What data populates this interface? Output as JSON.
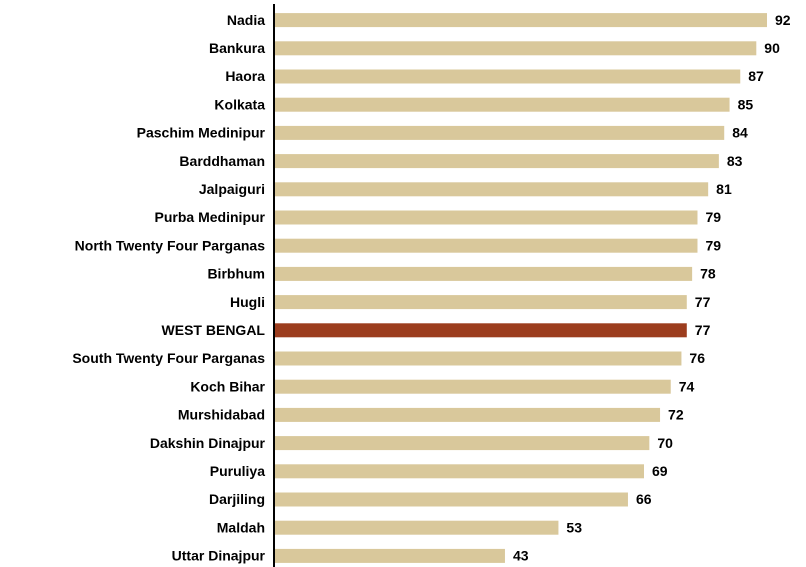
{
  "chart_data": {
    "type": "hbar",
    "categories": [
      "Nadia",
      "Bankura",
      "Haora",
      "Kolkata",
      "Paschim Medinipur",
      "Barddhaman",
      "Jalpaiguri",
      "Purba Medinipur",
      "North Twenty Four Parganas",
      "Birbhum",
      "Hugli",
      "WEST BENGAL",
      "South Twenty Four Parganas",
      "Koch Bihar",
      "Murshidabad",
      "Dakshin Dinajpur",
      "Puruliya",
      "Darjiling",
      "Maldah",
      "Uttar Dinajpur"
    ],
    "values": [
      92,
      90,
      87,
      85,
      84,
      83,
      81,
      79,
      79,
      78,
      77,
      77,
      76,
      74,
      72,
      70,
      69,
      66,
      53,
      43
    ],
    "colors": [
      "#d9c89b",
      "#d9c89b",
      "#d9c89b",
      "#d9c89b",
      "#d9c89b",
      "#d9c89b",
      "#d9c89b",
      "#d9c89b",
      "#d9c89b",
      "#d9c89b",
      "#d9c89b",
      "#9c3d1e",
      "#d9c89b",
      "#d9c89b",
      "#d9c89b",
      "#d9c89b",
      "#d9c89b",
      "#d9c89b",
      "#d9c89b",
      "#d9c89b"
    ],
    "xlim": [
      0,
      92
    ]
  }
}
